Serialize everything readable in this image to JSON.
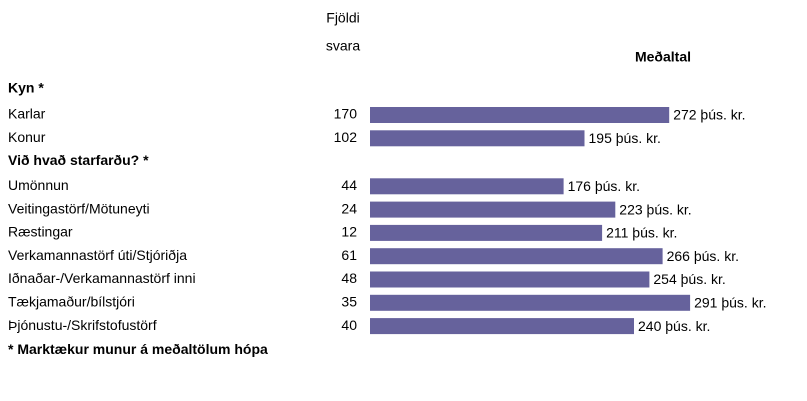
{
  "chart_data": {
    "type": "bar",
    "count_header": [
      "Fjöldi",
      "svara"
    ],
    "value_header": "Meðaltal",
    "color": "#66629c",
    "groups": [
      {
        "label": "Kyn *",
        "categories": [
          "Karlar",
          "Konur"
        ],
        "counts": [
          170,
          102
        ],
        "values": [
          272,
          195
        ],
        "value_labels": [
          "272 þús. kr.",
          "195 þús. kr."
        ]
      },
      {
        "label": "Við hvað starfarðu? *",
        "categories": [
          "Umönnun",
          "Veitingastörf/Mötuneyti",
          "Ræstingar",
          "Verkamannastörf úti/Stjóriðja",
          "Iðnaðar-/Verkamannastörf inni",
          "Tækjamaður/bílstjóri",
          "Þjónustu-/Skrifstofustörf"
        ],
        "counts": [
          44,
          24,
          12,
          61,
          48,
          35,
          40
        ],
        "values": [
          176,
          223,
          211,
          266,
          254,
          291,
          240
        ],
        "value_labels": [
          "176 þús. kr.",
          "223 þús. kr.",
          "211 þús. kr.",
          "266 þús. kr.",
          "254 þús. kr.",
          "291 þús. kr.",
          "240 þús. kr."
        ]
      }
    ],
    "footnote": "* Marktækur munur á meðaltölum hópa"
  }
}
